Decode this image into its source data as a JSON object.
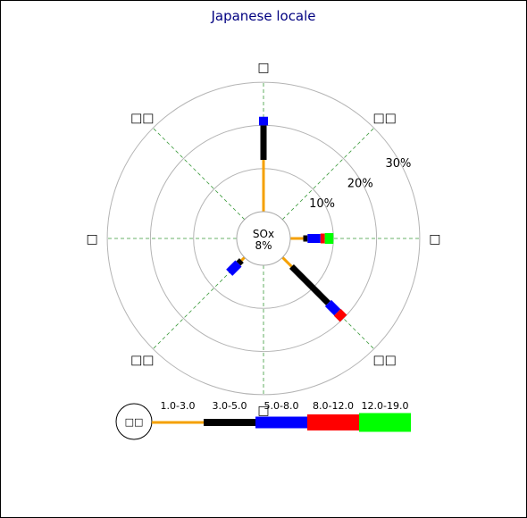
{
  "chart_data": {
    "type": "windrose",
    "title": "Japanese locale",
    "center": {
      "label": "SOx",
      "value": "8%"
    },
    "ring_labels": [
      "10%",
      "20%",
      "30%"
    ],
    "rings": [
      10,
      20,
      30
    ],
    "directions": [
      "□",
      "□□",
      "□",
      "□□",
      "□",
      "□□",
      "□",
      "□□"
    ],
    "direction_angles": [
      0,
      45,
      90,
      135,
      180,
      225,
      270,
      315
    ],
    "bins": [
      {
        "label": "1.0-3.0",
        "color": "#f5a000"
      },
      {
        "label": "3.0-5.0",
        "color": "#000000"
      },
      {
        "label": "5.0-8.0",
        "color": "#0000ff"
      },
      {
        "label": "8.0-12.0",
        "color": "#ff0000"
      },
      {
        "label": "12.0-19.0",
        "color": "#00ff00"
      }
    ],
    "legend_center_label": "□□",
    "segments": [
      {
        "angle": 0,
        "values": [
          12,
          8,
          2,
          0,
          0
        ]
      },
      {
        "angle": 90,
        "values": [
          3,
          1,
          3,
          1,
          2
        ]
      },
      {
        "angle": 135,
        "values": [
          3,
          12,
          3,
          2,
          0
        ]
      },
      {
        "angle": 225,
        "values": [
          1,
          1,
          3,
          0,
          0
        ]
      }
    ]
  }
}
